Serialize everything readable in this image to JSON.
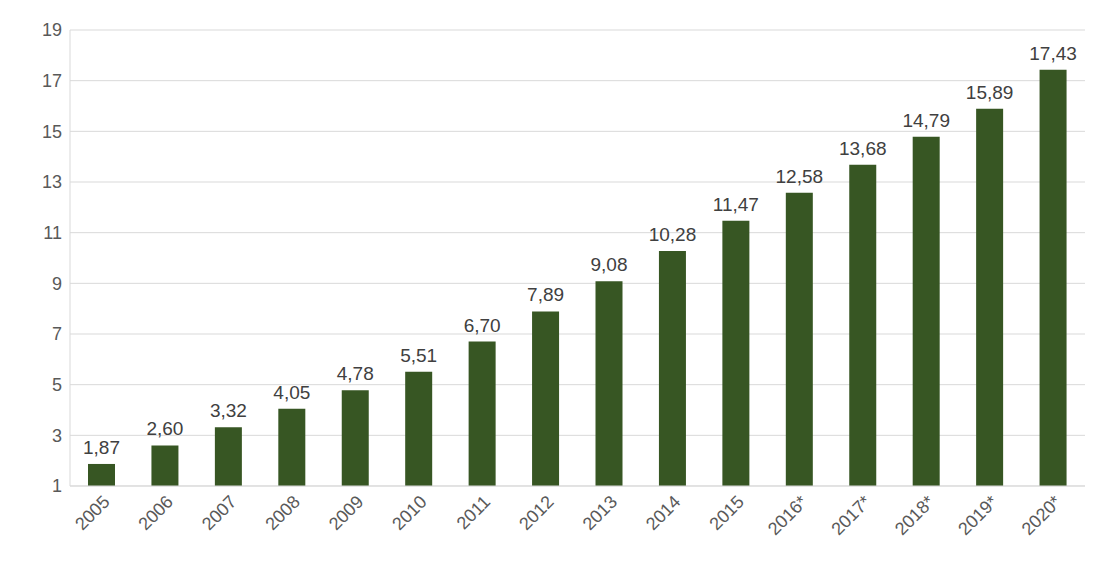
{
  "chart_data": {
    "type": "bar",
    "categories": [
      "2005",
      "2006",
      "2007",
      "2008",
      "2009",
      "2010",
      "2011",
      "2012",
      "2013",
      "2014",
      "2015",
      "2016*",
      "2017*",
      "2018*",
      "2019*",
      "2020*"
    ],
    "values": [
      1.87,
      2.6,
      3.32,
      4.05,
      4.78,
      5.51,
      6.7,
      7.89,
      9.08,
      10.28,
      11.47,
      12.58,
      13.68,
      14.79,
      15.89,
      17.43
    ],
    "value_labels": [
      "1,87",
      "2,60",
      "3,32",
      "4,05",
      "4,78",
      "5,51",
      "6,70",
      "7,89",
      "9,08",
      "10,28",
      "11,47",
      "12,58",
      "13,68",
      "14,79",
      "15,89",
      "17,43"
    ],
    "color": "#375623",
    "ylim": [
      1,
      19
    ],
    "yticks": [
      1,
      3,
      5,
      7,
      9,
      11,
      13,
      15,
      17,
      19
    ],
    "grid": true,
    "data_labels": true
  }
}
